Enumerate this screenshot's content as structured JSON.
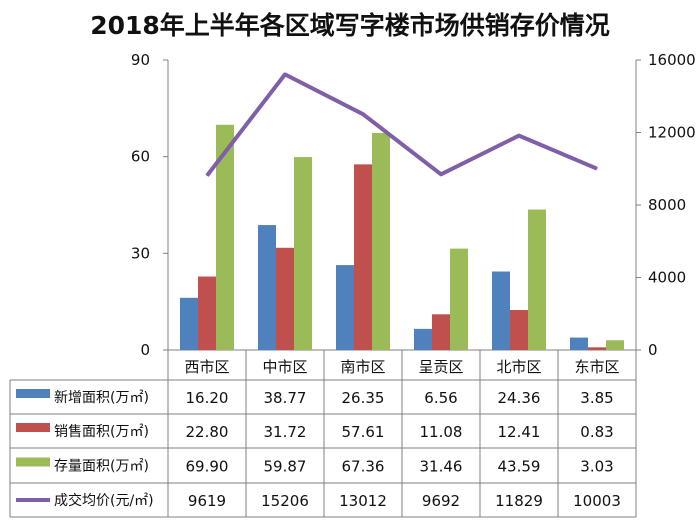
{
  "chart_data": {
    "type": "bar",
    "title": "2018年上半年各区域写字楼市场供销存价情况",
    "categories": [
      "西市区",
      "中市区",
      "南市区",
      "呈贡区",
      "北市区",
      "东市区"
    ],
    "series": [
      {
        "name": "新增面积(万㎡)",
        "type": "bar",
        "axis": "left",
        "color": "#4F81BD",
        "values": [
          16.2,
          38.77,
          26.35,
          6.56,
          24.36,
          3.85
        ],
        "labels": [
          "16.20",
          "38.77",
          "26.35",
          "6.56",
          "24.36",
          "3.85"
        ]
      },
      {
        "name": "销售面积(万㎡)",
        "type": "bar",
        "axis": "left",
        "color": "#C0504D",
        "values": [
          22.8,
          31.72,
          57.61,
          11.08,
          12.41,
          0.83
        ],
        "labels": [
          "22.80",
          "31.72",
          "57.61",
          "11.08",
          "12.41",
          "0.83"
        ]
      },
      {
        "name": "存量面积(万㎡)",
        "type": "bar",
        "axis": "left",
        "color": "#9BBB59",
        "values": [
          69.9,
          59.87,
          67.36,
          31.46,
          43.59,
          3.03
        ],
        "labels": [
          "69.90",
          "59.87",
          "67.36",
          "31.46",
          "43.59",
          "3.03"
        ]
      },
      {
        "name": "成交均价(元/㎡)",
        "type": "line",
        "axis": "right",
        "color": "#7E5FA8",
        "values": [
          9619,
          15206,
          13012,
          9692,
          11829,
          10003
        ],
        "labels": [
          "9619",
          "15206",
          "13012",
          "9692",
          "11829",
          "10003"
        ]
      }
    ],
    "y_left": {
      "min": 0,
      "max": 90,
      "ticks": [
        "0",
        "30",
        "60",
        "90"
      ]
    },
    "y_right": {
      "min": 0,
      "max": 16000,
      "ticks": [
        "0",
        "4000",
        "8000",
        "12000",
        "16000"
      ]
    },
    "grid": false,
    "legend": "data-table"
  }
}
